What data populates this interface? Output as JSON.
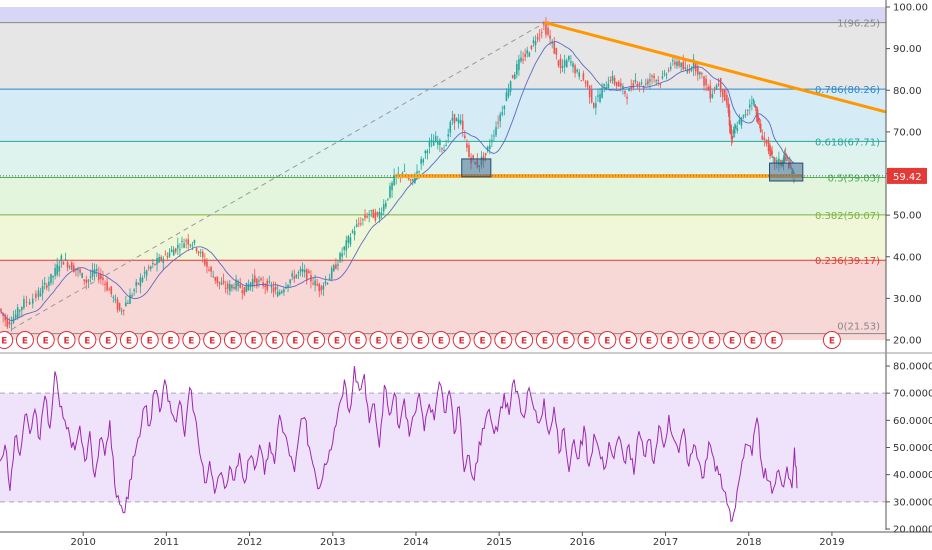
{
  "chart_data": [
    {
      "type": "line",
      "subtype": "candlestick",
      "x_range": [
        2009.0,
        2019.65
      ],
      "ylim": [
        20,
        100
      ],
      "yticks": [
        "20.00",
        "30.00",
        "40.00",
        "50.00",
        "60.00",
        "70.00",
        "80.00",
        "90.00",
        "100.00"
      ],
      "xticks": [
        {
          "x": 2010,
          "label": "2010"
        },
        {
          "x": 2011,
          "label": "2011"
        },
        {
          "x": 2012,
          "label": "2012"
        },
        {
          "x": 2013,
          "label": "2013"
        },
        {
          "x": 2014,
          "label": "2014"
        },
        {
          "x": 2015,
          "label": "2015"
        },
        {
          "x": 2016,
          "label": "2016"
        },
        {
          "x": 2017,
          "label": "2017"
        },
        {
          "x": 2018,
          "label": "2018"
        },
        {
          "x": 2019,
          "label": "2019"
        }
      ],
      "last_price": {
        "value": 59.42,
        "label": "59.42",
        "color": "#e53935"
      },
      "fib_levels": [
        {
          "value": 96.25,
          "label": "1(96.25)",
          "color": "#888888",
          "fill": "#e6e6e6"
        },
        {
          "value": 80.26,
          "label": "0.786(80.26)",
          "color": "#2f86c8",
          "fill": "#d5ecf7"
        },
        {
          "value": 67.71,
          "label": "0.618(67.71)",
          "color": "#26a69a",
          "fill": "#dff3ee"
        },
        {
          "value": 59.03,
          "label": "0.5(59.03)",
          "color": "#4caf50",
          "fill": "#e3f5dc"
        },
        {
          "value": 50.07,
          "label": "0.382(50.07)",
          "color": "#7cb342",
          "fill": "#f0f7d8"
        },
        {
          "value": 39.17,
          "label": "0.236(39.17)",
          "color": "#e53935",
          "fill": "#f8d7d7"
        },
        {
          "value": 21.53,
          "label": "0(21.53)",
          "color": "#888888",
          "fill": "#f8d7d7"
        }
      ],
      "top_band": {
        "from": 96.25,
        "to": 100,
        "fill": "#d7d7f5"
      },
      "trendline": {
        "points": [
          [
            2015.55,
            96.25
          ],
          [
            2019.65,
            74.8
          ]
        ],
        "color": "#ff9800"
      },
      "support_line": {
        "points": [
          [
            2013.75,
            59.4
          ],
          [
            2018.65,
            59.4
          ]
        ],
        "color": "#ffa726"
      },
      "fib_dashed_line": {
        "points": [
          [
            2009.05,
            21.53
          ],
          [
            2015.55,
            96.25
          ]
        ],
        "color": "#999999"
      },
      "price_path": [
        [
          2009.0,
          27.5
        ],
        [
          2009.1,
          24.0
        ],
        [
          2009.2,
          26.0
        ],
        [
          2009.3,
          29.0
        ],
        [
          2009.45,
          30.5
        ],
        [
          2009.55,
          33.0
        ],
        [
          2009.65,
          35.5
        ],
        [
          2009.75,
          39.5
        ],
        [
          2009.85,
          38.0
        ],
        [
          2009.95,
          36.5
        ],
        [
          2010.05,
          34.0
        ],
        [
          2010.15,
          36.5
        ],
        [
          2010.25,
          34.5
        ],
        [
          2010.35,
          31.0
        ],
        [
          2010.45,
          27.0
        ],
        [
          2010.55,
          29.5
        ],
        [
          2010.65,
          33.0
        ],
        [
          2010.75,
          36.0
        ],
        [
          2010.85,
          38.0
        ],
        [
          2010.95,
          39.5
        ],
        [
          2011.05,
          41.0
        ],
        [
          2011.15,
          42.5
        ],
        [
          2011.25,
          44.0
        ],
        [
          2011.35,
          43.0
        ],
        [
          2011.45,
          39.5
        ],
        [
          2011.55,
          36.0
        ],
        [
          2011.65,
          33.5
        ],
        [
          2011.75,
          32.5
        ],
        [
          2011.85,
          33.5
        ],
        [
          2011.95,
          32.0
        ],
        [
          2012.05,
          34.5
        ],
        [
          2012.15,
          33.5
        ],
        [
          2012.25,
          33.0
        ],
        [
          2012.35,
          31.0
        ],
        [
          2012.45,
          33.5
        ],
        [
          2012.55,
          35.5
        ],
        [
          2012.65,
          36.5
        ],
        [
          2012.75,
          34.5
        ],
        [
          2012.85,
          32.5
        ],
        [
          2012.95,
          34.5
        ],
        [
          2013.05,
          38.0
        ],
        [
          2013.15,
          42.0
        ],
        [
          2013.25,
          46.0
        ],
        [
          2013.35,
          48.5
        ],
        [
          2013.45,
          50.5
        ],
        [
          2013.55,
          49.5
        ],
        [
          2013.65,
          53.5
        ],
        [
          2013.75,
          58.5
        ],
        [
          2013.85,
          60.5
        ],
        [
          2013.95,
          57.5
        ],
        [
          2014.05,
          61.5
        ],
        [
          2014.15,
          66.5
        ],
        [
          2014.25,
          68.0
        ],
        [
          2014.35,
          66.0
        ],
        [
          2014.45,
          73.5
        ],
        [
          2014.55,
          72.0
        ],
        [
          2014.65,
          64.0
        ],
        [
          2014.75,
          62.0
        ],
        [
          2014.85,
          64.5
        ],
        [
          2014.95,
          70.0
        ],
        [
          2015.05,
          75.5
        ],
        [
          2015.15,
          82.5
        ],
        [
          2015.25,
          86.5
        ],
        [
          2015.35,
          89.0
        ],
        [
          2015.45,
          92.5
        ],
        [
          2015.55,
          95.5
        ],
        [
          2015.65,
          91.0
        ],
        [
          2015.75,
          85.0
        ],
        [
          2015.85,
          87.5
        ],
        [
          2015.95,
          84.0
        ],
        [
          2016.05,
          82.0
        ],
        [
          2016.15,
          76.5
        ],
        [
          2016.25,
          80.0
        ],
        [
          2016.35,
          83.0
        ],
        [
          2016.45,
          81.0
        ],
        [
          2016.55,
          79.0
        ],
        [
          2016.65,
          82.5
        ],
        [
          2016.75,
          81.0
        ],
        [
          2016.85,
          83.5
        ],
        [
          2016.95,
          82.0
        ],
        [
          2017.05,
          85.5
        ],
        [
          2017.15,
          87.0
        ],
        [
          2017.25,
          84.5
        ],
        [
          2017.35,
          86.5
        ],
        [
          2017.45,
          83.0
        ],
        [
          2017.55,
          79.0
        ],
        [
          2017.65,
          82.0
        ],
        [
          2017.75,
          76.5
        ],
        [
          2017.8,
          68.0
        ],
        [
          2017.85,
          71.0
        ],
        [
          2017.95,
          73.5
        ],
        [
          2018.05,
          78.0
        ],
        [
          2018.1,
          74.5
        ],
        [
          2018.15,
          70.0
        ],
        [
          2018.25,
          66.0
        ],
        [
          2018.3,
          63.0
        ],
        [
          2018.4,
          62.5
        ],
        [
          2018.45,
          64.5
        ],
        [
          2018.5,
          61.5
        ],
        [
          2018.55,
          59.42
        ]
      ],
      "earnings_markers": {
        "label": "E",
        "start": 2009.05,
        "step": 0.25,
        "count": 38,
        "extra": [
          2019.0
        ]
      }
    },
    {
      "type": "line",
      "subtype": "rsi",
      "ylim": [
        20,
        80
      ],
      "yticks": [
        "20.0000",
        "30.0000",
        "40.0000",
        "50.0000",
        "60.0000",
        "70.0000",
        "80.0000"
      ],
      "band": {
        "from": 30,
        "to": 70,
        "fill": "#efe3fb",
        "line_color": "#b0a0c0"
      },
      "line_color": "#9c27b0",
      "values": [
        [
          2009.0,
          45
        ],
        [
          2009.06,
          51
        ],
        [
          2009.12,
          34
        ],
        [
          2009.18,
          54
        ],
        [
          2009.24,
          47
        ],
        [
          2009.3,
          62
        ],
        [
          2009.36,
          55
        ],
        [
          2009.42,
          64
        ],
        [
          2009.48,
          53
        ],
        [
          2009.54,
          69
        ],
        [
          2009.6,
          57
        ],
        [
          2009.66,
          78
        ],
        [
          2009.72,
          65
        ],
        [
          2009.78,
          60
        ],
        [
          2009.84,
          54
        ],
        [
          2009.9,
          49
        ],
        [
          2009.96,
          58
        ],
        [
          2010.02,
          45
        ],
        [
          2010.08,
          56
        ],
        [
          2010.14,
          39
        ],
        [
          2010.2,
          53
        ],
        [
          2010.26,
          47
        ],
        [
          2010.32,
          60
        ],
        [
          2010.38,
          36
        ],
        [
          2010.44,
          29
        ],
        [
          2010.5,
          26
        ],
        [
          2010.56,
          38
        ],
        [
          2010.62,
          47
        ],
        [
          2010.68,
          54
        ],
        [
          2010.74,
          65
        ],
        [
          2010.8,
          58
        ],
        [
          2010.86,
          71
        ],
        [
          2010.92,
          63
        ],
        [
          2010.98,
          75
        ],
        [
          2011.04,
          67
        ],
        [
          2011.1,
          60
        ],
        [
          2011.16,
          67
        ],
        [
          2011.22,
          54
        ],
        [
          2011.28,
          72
        ],
        [
          2011.34,
          62
        ],
        [
          2011.4,
          48
        ],
        [
          2011.46,
          37
        ],
        [
          2011.52,
          45
        ],
        [
          2011.58,
          33
        ],
        [
          2011.64,
          40
        ],
        [
          2011.7,
          35
        ],
        [
          2011.76,
          43
        ],
        [
          2011.82,
          38
        ],
        [
          2011.88,
          48
        ],
        [
          2011.94,
          37
        ],
        [
          2012.0,
          46
        ],
        [
          2012.06,
          42
        ],
        [
          2012.12,
          51
        ],
        [
          2012.18,
          40
        ],
        [
          2012.24,
          52
        ],
        [
          2012.3,
          44
        ],
        [
          2012.36,
          62
        ],
        [
          2012.42,
          55
        ],
        [
          2012.48,
          47
        ],
        [
          2012.54,
          41
        ],
        [
          2012.6,
          56
        ],
        [
          2012.66,
          61
        ],
        [
          2012.72,
          50
        ],
        [
          2012.78,
          42
        ],
        [
          2012.84,
          35
        ],
        [
          2012.9,
          44
        ],
        [
          2012.96,
          49
        ],
        [
          2013.02,
          57
        ],
        [
          2013.08,
          66
        ],
        [
          2013.14,
          75
        ],
        [
          2013.2,
          63
        ],
        [
          2013.26,
          80
        ],
        [
          2013.32,
          71
        ],
        [
          2013.38,
          77
        ],
        [
          2013.44,
          59
        ],
        [
          2013.5,
          66
        ],
        [
          2013.56,
          50
        ],
        [
          2013.62,
          73
        ],
        [
          2013.68,
          62
        ],
        [
          2013.74,
          70
        ],
        [
          2013.8,
          57
        ],
        [
          2013.86,
          68
        ],
        [
          2013.92,
          54
        ],
        [
          2013.98,
          62
        ],
        [
          2014.04,
          70
        ],
        [
          2014.1,
          56
        ],
        [
          2014.16,
          66
        ],
        [
          2014.22,
          60
        ],
        [
          2014.28,
          74
        ],
        [
          2014.34,
          63
        ],
        [
          2014.4,
          71
        ],
        [
          2014.46,
          55
        ],
        [
          2014.52,
          65
        ],
        [
          2014.58,
          41
        ],
        [
          2014.64,
          47
        ],
        [
          2014.7,
          38
        ],
        [
          2014.76,
          52
        ],
        [
          2014.82,
          57
        ],
        [
          2014.88,
          64
        ],
        [
          2014.94,
          55
        ],
        [
          2015.0,
          61
        ],
        [
          2015.06,
          70
        ],
        [
          2015.12,
          62
        ],
        [
          2015.18,
          75
        ],
        [
          2015.24,
          68
        ],
        [
          2015.3,
          61
        ],
        [
          2015.36,
          72
        ],
        [
          2015.42,
          64
        ],
        [
          2015.48,
          59
        ],
        [
          2015.54,
          68
        ],
        [
          2015.6,
          55
        ],
        [
          2015.66,
          65
        ],
        [
          2015.72,
          48
        ],
        [
          2015.78,
          57
        ],
        [
          2015.84,
          41
        ],
        [
          2015.9,
          53
        ],
        [
          2015.96,
          46
        ],
        [
          2016.02,
          58
        ],
        [
          2016.08,
          43
        ],
        [
          2016.14,
          55
        ],
        [
          2016.2,
          49
        ],
        [
          2016.26,
          42
        ],
        [
          2016.32,
          52
        ],
        [
          2016.38,
          46
        ],
        [
          2016.44,
          54
        ],
        [
          2016.5,
          45
        ],
        [
          2016.56,
          51
        ],
        [
          2016.62,
          40
        ],
        [
          2016.68,
          56
        ],
        [
          2016.74,
          47
        ],
        [
          2016.8,
          53
        ],
        [
          2016.86,
          44
        ],
        [
          2016.92,
          58
        ],
        [
          2016.98,
          50
        ],
        [
          2017.04,
          62
        ],
        [
          2017.1,
          53
        ],
        [
          2017.16,
          48
        ],
        [
          2017.22,
          57
        ],
        [
          2017.28,
          43
        ],
        [
          2017.34,
          51
        ],
        [
          2017.4,
          45
        ],
        [
          2017.46,
          39
        ],
        [
          2017.52,
          52
        ],
        [
          2017.58,
          46
        ],
        [
          2017.64,
          40
        ],
        [
          2017.7,
          34
        ],
        [
          2017.76,
          28
        ],
        [
          2017.8,
          23
        ],
        [
          2017.86,
          34
        ],
        [
          2017.92,
          45
        ],
        [
          2017.98,
          51
        ],
        [
          2018.04,
          47
        ],
        [
          2018.1,
          61
        ],
        [
          2018.16,
          43
        ],
        [
          2018.22,
          38
        ],
        [
          2018.28,
          33
        ],
        [
          2018.34,
          41
        ],
        [
          2018.4,
          36
        ],
        [
          2018.46,
          43
        ],
        [
          2018.52,
          35
        ],
        [
          2018.55,
          50
        ],
        [
          2018.58,
          35
        ]
      ]
    }
  ]
}
